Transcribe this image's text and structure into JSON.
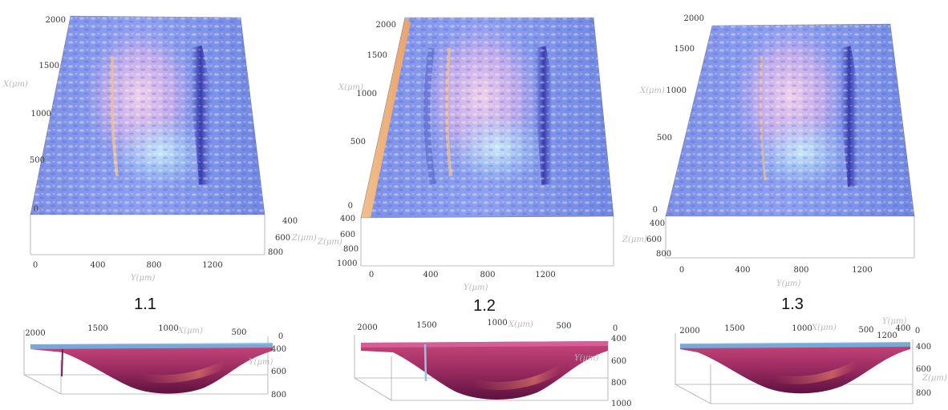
{
  "panels": [
    {
      "label": "1.1",
      "top": {
        "x_ticks": [
          "0",
          "500",
          "1000",
          "1500",
          "2000"
        ],
        "y_ticks": [
          "0",
          "400",
          "800",
          "1200"
        ],
        "z_ticks": [
          "400",
          "600",
          "800"
        ],
        "x_title": "X(μm)",
        "y_title": "Y(μm)",
        "z_title": "Z(μm)"
      },
      "bottom": {
        "x_ticks": [
          "2000",
          "1500",
          "1000",
          "500",
          "0"
        ],
        "z_ticks": [
          "400",
          "600",
          "800"
        ],
        "x_title": "X(μm)",
        "y_title": "Y(μm)"
      }
    },
    {
      "label": "1.2",
      "top": {
        "x_ticks": [
          "0",
          "500",
          "1000",
          "1500",
          "2000"
        ],
        "y_ticks": [
          "0",
          "400",
          "800",
          "1200"
        ],
        "z_ticks": [
          "400",
          "600",
          "800",
          "1000"
        ],
        "x_title": "X(μm)",
        "y_title": "Y(μm)",
        "z_title": "Z(μm)"
      },
      "bottom": {
        "x_ticks": [
          "2000",
          "1500",
          "1000",
          "500",
          "0"
        ],
        "z_ticks": [
          "400",
          "600",
          "800",
          "1000"
        ],
        "x_title": "X(μm)",
        "y_title": "Y(μm)"
      }
    },
    {
      "label": "1.3",
      "top": {
        "x_ticks": [
          "0",
          "500",
          "1000",
          "1500",
          "2000"
        ],
        "y_ticks": [
          "0",
          "400",
          "800",
          "1200"
        ],
        "z_ticks": [
          "400",
          "600",
          "800"
        ],
        "x_title": "X(μm)",
        "y_title": "Y(μm)",
        "z_title": "Z(μm)"
      },
      "bottom": {
        "x_ticks": [
          "2000",
          "1500",
          "1000",
          "500",
          "0"
        ],
        "z_ticks": [
          "400",
          "600",
          "800"
        ],
        "extra_ticks": [
          "400",
          "1200"
        ],
        "x_title": "X(μm)",
        "y_title": "Y(μm)",
        "z_title": "Z(μm)"
      }
    }
  ]
}
